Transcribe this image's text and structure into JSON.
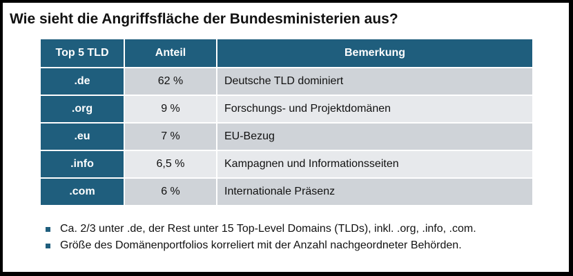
{
  "title": "Wie sieht die Angriffsfläche der Bundesministerien aus?",
  "table": {
    "headers": [
      "Top 5 TLD",
      "Anteil",
      "Bemerkung"
    ],
    "rows": [
      {
        "tld": ".de",
        "share": "62 %",
        "remark": "Deutsche TLD dominiert"
      },
      {
        "tld": ".org",
        "share": "9 %",
        "remark": "Forschungs- und Projektdomänen"
      },
      {
        "tld": ".eu",
        "share": "7 %",
        "remark": "EU-Bezug"
      },
      {
        "tld": ".info",
        "share": "6,5 %",
        "remark": "Kampagnen und Informationsseiten"
      },
      {
        "tld": ".com",
        "share": "6 %",
        "remark": "Internationale Präsenz"
      }
    ]
  },
  "bullets": [
    "Ca. 2/3 unter .de, der Rest unter 15 Top-Level Domains (TLDs), inkl. .org, .info, .com.",
    "Größe des Domänenportfolios korreliert mit der Anzahl nachgeordneter Behörden."
  ],
  "colors": {
    "header_bg": "#1f5e7d",
    "row_odd_bg": "#cfd3d8",
    "row_even_bg": "#e7e9ec",
    "frame": "#000000"
  }
}
